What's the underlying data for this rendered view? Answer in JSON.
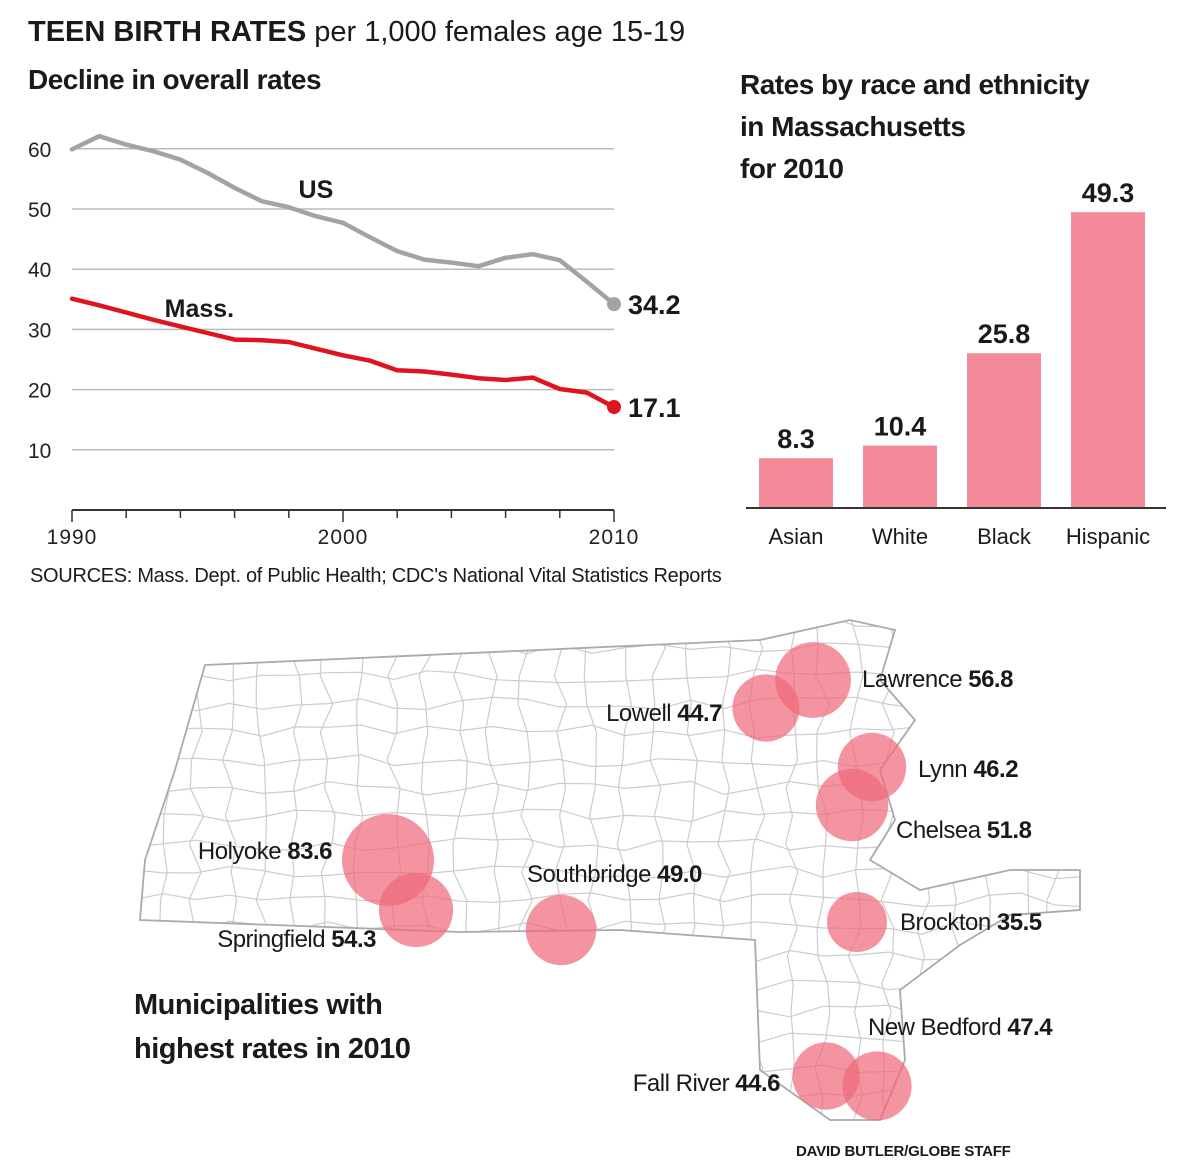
{
  "title": {
    "bold": "TEEN BIRTH RATES",
    "rest": "per 1,000 females age 15-19"
  },
  "line_subtitle": "Decline in overall rates",
  "bar_subtitle": [
    "Rates by race and ethnicity",
    "in Massachusetts",
    "for 2010"
  ],
  "sources": "SOURCES: Mass. Dept. of Public Health; CDC's National Vital Statistics Reports",
  "map_caption": [
    "Municipalities with",
    "highest rates in 2010"
  ],
  "credit": "DAVID BUTLER/GLOBE STAFF",
  "colors": {
    "us": "#a3a3a3",
    "mass": "#e0141e",
    "bar": "#f4899a",
    "bubble": "#ee6b7c",
    "grid": "#bbbbbb",
    "map_lines": "#cccccc"
  },
  "chart_data": [
    {
      "type": "line",
      "title": "Decline in overall rates",
      "xlabel": "",
      "ylabel": "",
      "xlim": [
        1990,
        2010
      ],
      "ylim": [
        0,
        65
      ],
      "x_ticks": [
        1990,
        2000,
        2010
      ],
      "y_ticks": [
        10,
        20,
        30,
        40,
        50,
        60
      ],
      "grid": true,
      "x": [
        1990,
        1991,
        1992,
        1993,
        1994,
        1995,
        1996,
        1997,
        1998,
        1999,
        2000,
        2001,
        2002,
        2003,
        2004,
        2005,
        2006,
        2007,
        2008,
        2009,
        2010
      ],
      "series": [
        {
          "name": "US",
          "values": [
            59.9,
            62.1,
            60.7,
            59.6,
            58.2,
            56.0,
            53.5,
            51.3,
            50.3,
            48.8,
            47.7,
            45.3,
            43.0,
            41.6,
            41.1,
            40.5,
            41.9,
            42.5,
            41.5,
            37.9,
            34.2
          ],
          "end_label": "34.2"
        },
        {
          "name": "Mass.",
          "values": [
            35.1,
            34.0,
            32.8,
            31.6,
            30.5,
            29.4,
            28.3,
            28.2,
            27.9,
            26.8,
            25.7,
            24.8,
            23.2,
            23.0,
            22.5,
            21.9,
            21.6,
            22.0,
            20.1,
            19.5,
            17.1
          ],
          "end_label": "17.1"
        }
      ]
    },
    {
      "type": "bar",
      "title": "Rates by race and ethnicity in Massachusetts for 2010",
      "categories": [
        "Asian",
        "White",
        "Black",
        "Hispanic"
      ],
      "values": [
        8.3,
        10.4,
        25.8,
        49.3
      ],
      "labels": [
        "8.3",
        "10.4",
        "25.8",
        "49.3"
      ],
      "ylim": [
        0,
        52
      ]
    },
    {
      "type": "bubble_map",
      "title": "Municipalities with highest rates in 2010",
      "points": [
        {
          "name": "Lawrence",
          "value": 56.8,
          "label": "56.8"
        },
        {
          "name": "Lowell",
          "value": 44.7,
          "label": "44.7"
        },
        {
          "name": "Lynn",
          "value": 46.2,
          "label": "46.2"
        },
        {
          "name": "Chelsea",
          "value": 51.8,
          "label": "51.8"
        },
        {
          "name": "Holyoke",
          "value": 83.6,
          "label": "83.6"
        },
        {
          "name": "Springfield",
          "value": 54.3,
          "label": "54.3"
        },
        {
          "name": "Southbridge",
          "value": 49.0,
          "label": "49.0"
        },
        {
          "name": "Brockton",
          "value": 35.5,
          "label": "35.5"
        },
        {
          "name": "New Bedford",
          "value": 47.4,
          "label": "47.4"
        },
        {
          "name": "Fall River",
          "value": 44.6,
          "label": "44.6"
        }
      ]
    }
  ]
}
